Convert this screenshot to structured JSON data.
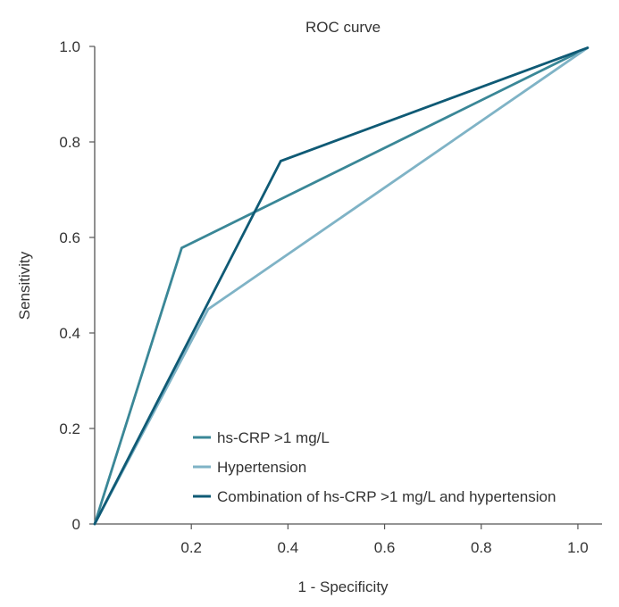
{
  "chart_data": {
    "type": "line",
    "title": "ROC curve",
    "xlabel": "1 - Specificity",
    "ylabel": "Sensitivity",
    "xlim": [
      0,
      1.05
    ],
    "ylim": [
      0,
      1.0
    ],
    "x_ticks": [
      {
        "value": 0.2,
        "label": "0.2"
      },
      {
        "value": 0.4,
        "label": "0.4"
      },
      {
        "value": 0.6,
        "label": "0.6"
      },
      {
        "value": 0.8,
        "label": "0.8"
      },
      {
        "value": 1.0,
        "label": "1.0"
      }
    ],
    "y_ticks": [
      {
        "value": 0,
        "label": "0"
      },
      {
        "value": 0.2,
        "label": "0.2"
      },
      {
        "value": 0.4,
        "label": "0.4"
      },
      {
        "value": 0.6,
        "label": "0.6"
      },
      {
        "value": 0.8,
        "label": "0.8"
      },
      {
        "value": 1.0,
        "label": "1.0"
      }
    ],
    "legend_position": "bottom-right",
    "series": [
      {
        "name": "hs-CRP >1 mg/L",
        "color": "#3a8797",
        "x": [
          0,
          0.18,
          1.02
        ],
        "y": [
          0,
          0.578,
          0.997
        ]
      },
      {
        "name": "Hypertension",
        "color": "#7fb3c6",
        "x": [
          0,
          0.235,
          1.02
        ],
        "y": [
          0,
          0.45,
          0.997
        ]
      },
      {
        "name": "Combination of hs-CRP >1 mg/L and hypertension",
        "color": "#0f5a75",
        "x": [
          0,
          0.385,
          1.02
        ],
        "y": [
          0,
          0.76,
          0.997
        ]
      }
    ]
  }
}
